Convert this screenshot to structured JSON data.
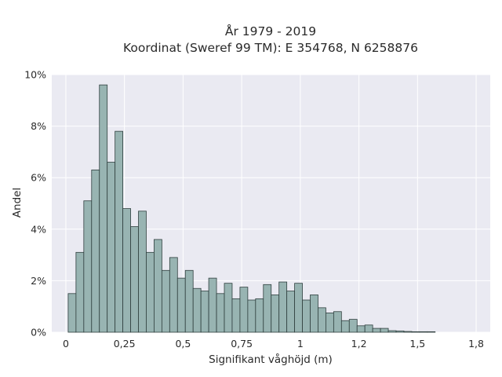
{
  "chart_data": {
    "type": "bar",
    "title": "År 1979 - 2019",
    "subtitle": "Koordinat (Sweref 99 TM): E 354768, N 6258876",
    "xlabel": "Signifikant våghöjd (m)",
    "ylabel": "Andel",
    "x_ticks": [
      {
        "value": 0,
        "label": "0"
      },
      {
        "value": 0.25,
        "label": "0,25"
      },
      {
        "value": 0.5,
        "label": "0,5"
      },
      {
        "value": 0.75,
        "label": "0,75"
      },
      {
        "value": 1,
        "label": "1"
      },
      {
        "value": 1.25,
        "label": "1,2"
      },
      {
        "value": 1.5,
        "label": "1,5"
      },
      {
        "value": 1.75,
        "label": "1,8"
      }
    ],
    "y_ticks": [
      {
        "value": 0,
        "label": "0%"
      },
      {
        "value": 2,
        "label": "2%"
      },
      {
        "value": 4,
        "label": "4%"
      },
      {
        "value": 6,
        "label": "6%"
      },
      {
        "value": 8,
        "label": "8%"
      },
      {
        "value": 10,
        "label": "10%"
      }
    ],
    "xlim": [
      -0.06,
      1.81
    ],
    "ylim": [
      0,
      10
    ],
    "grid": true,
    "bin_start": 0.01,
    "bin_width": 0.0333,
    "values": [
      1.5,
      3.1,
      5.1,
      6.3,
      9.6,
      6.6,
      7.8,
      4.8,
      4.1,
      4.7,
      3.1,
      3.6,
      2.4,
      2.9,
      2.1,
      2.4,
      1.7,
      1.6,
      2.1,
      1.5,
      1.9,
      1.3,
      1.75,
      1.25,
      1.3,
      1.85,
      1.45,
      1.95,
      1.6,
      1.9,
      1.25,
      1.45,
      0.95,
      0.75,
      0.8,
      0.45,
      0.5,
      0.25,
      0.28,
      0.15,
      0.15,
      0.06,
      0.05,
      0.03,
      0.02,
      0.02,
      0.02
    ],
    "colors": {
      "bar": "#98b4b2",
      "bar_edge": "#2f3f3e",
      "plot_bg": "#eaeaf2",
      "grid": "#ffffff"
    }
  }
}
